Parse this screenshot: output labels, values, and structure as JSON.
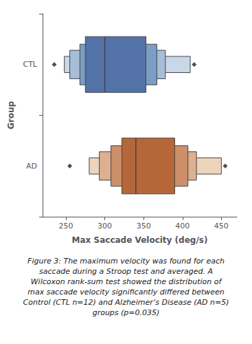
{
  "chart_data": {
    "type": "letter_value",
    "orientation": "horizontal",
    "categories": [
      "AD",
      "CTL"
    ],
    "groups": [
      {
        "outlier_low": 255,
        "whisker_low": 280,
        "box3_low": 293,
        "box2_low": 308,
        "q1": 322,
        "median": 340,
        "q3": 390,
        "box2_high": 407,
        "box3_high": 418,
        "whisker_high": 450,
        "outlier_high": 455,
        "colors": [
          "#edd5bb",
          "#deb090",
          "#cc8f6a",
          "#b5673a"
        ]
      },
      {
        "outlier_low": 235,
        "whisker_low": 248,
        "box3_low": 255,
        "box2_low": 268,
        "q1": 275,
        "median": 300,
        "q3": 353,
        "box2_high": 367,
        "box3_high": 378,
        "whisker_high": 410,
        "outlier_high": 415,
        "colors": [
          "#c8d8e8",
          "#a8bdd6",
          "#7b9ec4",
          "#5272a8"
        ]
      }
    ],
    "xlabel": "Max Saccade Velocity (deg/s)",
    "ylabel": "Group",
    "xlim": [
      220,
      470
    ],
    "xticks": [
      250,
      300,
      350,
      400,
      450
    ],
    "grid": false,
    "caption": "Figure 3: The maximum velocity was found for each\nsaccade during a Stroop test and averaged. A\nWilcoxon rank-sum test showed the distribution of\nmax saccade velocity significantly differed between\nControl (CTL n=12) and Alzheimer’s Disease (AD n=5)\ngroups (p=0.035)"
  }
}
